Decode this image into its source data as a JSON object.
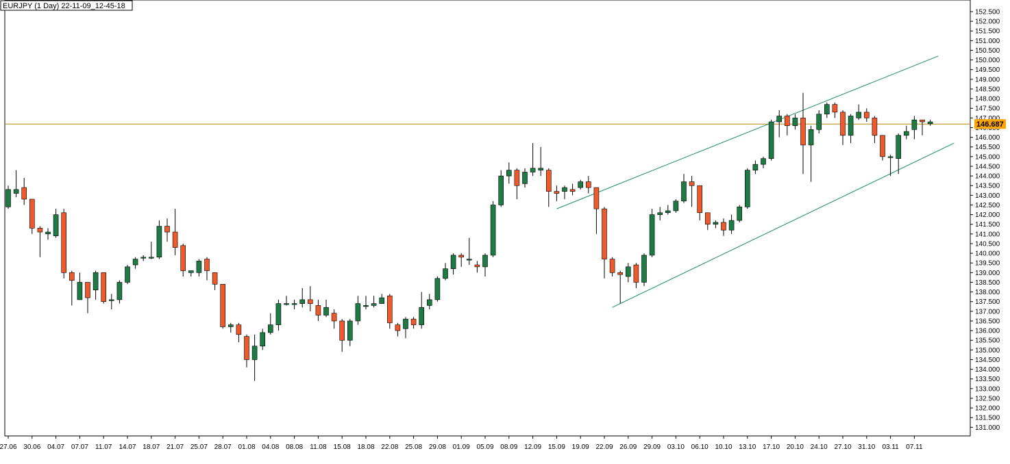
{
  "header": {
    "title": "EURJPY (1 Day) 22-11-09_12-45-18"
  },
  "colors": {
    "up": "#1e7b45",
    "down": "#ee5a2c",
    "wick": "#000000",
    "price_line": "#b8860b",
    "price_tag": "#ffa500",
    "channel": "#1a8a6a",
    "frame": "#000000"
  },
  "chart_data": {
    "type": "candlestick",
    "symbol": "EURJPY",
    "timeframe": "1 Day",
    "ylim": [
      130.8,
      152.5
    ],
    "y_ticks": [
      "131.000",
      "131.500",
      "132.000",
      "132.500",
      "133.000",
      "133.500",
      "134.000",
      "134.500",
      "135.000",
      "135.500",
      "136.000",
      "136.500",
      "137.000",
      "137.500",
      "138.000",
      "138.500",
      "139.000",
      "139.500",
      "140.000",
      "140.500",
      "141.000",
      "141.500",
      "142.000",
      "142.500",
      "143.000",
      "143.500",
      "144.000",
      "144.500",
      "145.000",
      "145.500",
      "146.000",
      "146.500",
      "147.000",
      "147.500",
      "148.000",
      "148.500",
      "149.000",
      "149.500",
      "150.000",
      "150.500",
      "151.000",
      "151.500",
      "152.000",
      "152.500"
    ],
    "x_labels": [
      {
        "label": "27.06",
        "index": 0
      },
      {
        "label": "30.06",
        "index": 3
      },
      {
        "label": "04.07",
        "index": 6
      },
      {
        "label": "07.07",
        "index": 9
      },
      {
        "label": "11.07",
        "index": 12
      },
      {
        "label": "14.07",
        "index": 15
      },
      {
        "label": "18.07",
        "index": 18
      },
      {
        "label": "21.07",
        "index": 21
      },
      {
        "label": "25.07",
        "index": 24
      },
      {
        "label": "28.07",
        "index": 27
      },
      {
        "label": "01.08",
        "index": 30
      },
      {
        "label": "04.08",
        "index": 33
      },
      {
        "label": "08.08",
        "index": 36
      },
      {
        "label": "11.08",
        "index": 39
      },
      {
        "label": "15.08",
        "index": 42
      },
      {
        "label": "18.08",
        "index": 45
      },
      {
        "label": "22.08",
        "index": 48
      },
      {
        "label": "25.08",
        "index": 51
      },
      {
        "label": "29.08",
        "index": 54
      },
      {
        "label": "01.09",
        "index": 57
      },
      {
        "label": "05.09",
        "index": 60
      },
      {
        "label": "08.09",
        "index": 63
      },
      {
        "label": "12.09",
        "index": 66
      },
      {
        "label": "15.09",
        "index": 69
      },
      {
        "label": "19.09",
        "index": 72
      },
      {
        "label": "22.09",
        "index": 75
      },
      {
        "label": "26.09",
        "index": 78
      },
      {
        "label": "29.09",
        "index": 81
      },
      {
        "label": "03.10",
        "index": 84
      },
      {
        "label": "06.10",
        "index": 87
      },
      {
        "label": "10.10",
        "index": 90
      },
      {
        "label": "13.10",
        "index": 93
      },
      {
        "label": "17.10",
        "index": 96
      },
      {
        "label": "20.10",
        "index": 99
      },
      {
        "label": "24.10",
        "index": 102
      },
      {
        "label": "27.10",
        "index": 105
      },
      {
        "label": "31.10",
        "index": 108
      },
      {
        "label": "03.11",
        "index": 111
      },
      {
        "label": "07.11",
        "index": 114
      }
    ],
    "current_price": 146.687,
    "current_price_label": "146.687",
    "channel_lines": [
      {
        "name": "upper",
        "start": {
          "index": 69,
          "price": 142.3
        },
        "end": {
          "index": 117,
          "price": 150.2
        }
      },
      {
        "name": "lower",
        "start": {
          "index": 76,
          "price": 137.2
        },
        "end": {
          "index": 119,
          "price": 145.7
        }
      }
    ],
    "candles": [
      [
        142.4,
        143.3,
        142.3,
        143.5
      ],
      [
        143.1,
        143.3,
        142.9,
        144.3
      ],
      [
        143.4,
        142.8,
        142.5,
        143.9
      ],
      [
        142.8,
        141.3,
        141.0,
        142.8
      ],
      [
        141.3,
        141.1,
        139.8,
        141.4
      ],
      [
        141.0,
        141.1,
        140.7,
        141.3
      ],
      [
        140.9,
        142.0,
        140.8,
        142.3
      ],
      [
        142.1,
        139.0,
        138.7,
        142.3
      ],
      [
        139.0,
        138.6,
        137.3,
        139.1
      ],
      [
        137.6,
        138.5,
        137.6,
        139.0
      ],
      [
        138.5,
        137.7,
        136.9,
        138.5
      ],
      [
        138.1,
        139.0,
        137.6,
        139.1
      ],
      [
        139.0,
        137.5,
        137.4,
        139.0
      ],
      [
        137.6,
        137.6,
        137.1,
        137.9
      ],
      [
        137.6,
        138.5,
        137.4,
        138.6
      ],
      [
        138.5,
        139.3,
        138.4,
        139.4
      ],
      [
        139.4,
        139.7,
        139.2,
        139.8
      ],
      [
        139.8,
        139.8,
        139.6,
        139.9
      ],
      [
        139.8,
        139.8,
        139.7,
        140.6
      ],
      [
        139.8,
        141.4,
        139.7,
        141.7
      ],
      [
        141.4,
        141.1,
        140.6,
        141.8
      ],
      [
        141.1,
        140.3,
        139.9,
        142.3
      ],
      [
        140.4,
        139.1,
        138.8,
        140.5
      ],
      [
        139.0,
        139.1,
        138.8,
        139.1
      ],
      [
        139.0,
        139.6,
        138.8,
        139.7
      ],
      [
        139.7,
        139.1,
        138.6,
        139.8
      ],
      [
        139.0,
        138.4,
        138.1,
        139.0
      ],
      [
        138.4,
        136.2,
        136.1,
        138.4
      ],
      [
        136.2,
        136.3,
        135.9,
        136.4
      ],
      [
        136.3,
        135.8,
        135.4,
        136.4
      ],
      [
        135.7,
        134.5,
        134.1,
        135.8
      ],
      [
        134.5,
        135.2,
        133.4,
        135.8
      ],
      [
        135.2,
        135.9,
        135.0,
        136.1
      ],
      [
        135.9,
        136.3,
        135.8,
        136.9
      ],
      [
        136.3,
        137.4,
        136.0,
        137.6
      ],
      [
        137.4,
        137.4,
        137.3,
        137.8
      ],
      [
        137.4,
        137.4,
        137.1,
        137.6
      ],
      [
        137.4,
        137.6,
        137.2,
        138.2
      ],
      [
        137.6,
        137.4,
        137.0,
        138.3
      ],
      [
        137.3,
        136.8,
        136.5,
        137.6
      ],
      [
        136.8,
        137.2,
        136.7,
        137.6
      ],
      [
        136.9,
        136.5,
        136.1,
        137.1
      ],
      [
        136.5,
        135.5,
        134.9,
        136.6
      ],
      [
        135.5,
        136.5,
        135.2,
        136.6
      ],
      [
        136.5,
        137.4,
        136.3,
        137.8
      ],
      [
        137.3,
        137.3,
        137.1,
        137.8
      ],
      [
        137.3,
        137.4,
        137.2,
        137.8
      ],
      [
        137.4,
        137.7,
        137.4,
        137.9
      ],
      [
        137.8,
        136.4,
        136.1,
        137.9
      ],
      [
        136.3,
        136.0,
        135.7,
        136.4
      ],
      [
        136.1,
        136.6,
        135.6,
        136.7
      ],
      [
        136.6,
        136.3,
        136.1,
        136.7
      ],
      [
        136.3,
        137.2,
        136.1,
        138.0
      ],
      [
        137.3,
        137.6,
        137.1,
        137.9
      ],
      [
        137.6,
        138.7,
        137.5,
        138.8
      ],
      [
        138.7,
        139.2,
        138.6,
        139.5
      ],
      [
        139.2,
        139.9,
        138.9,
        140.0
      ],
      [
        139.9,
        139.8,
        139.3,
        140.0
      ],
      [
        139.7,
        139.7,
        139.4,
        140.8
      ],
      [
        139.4,
        139.3,
        139.0,
        139.6
      ],
      [
        139.3,
        139.9,
        138.8,
        140.0
      ],
      [
        139.9,
        142.5,
        139.8,
        142.7
      ],
      [
        142.5,
        144.0,
        142.4,
        144.3
      ],
      [
        144.0,
        144.3,
        143.6,
        144.7
      ],
      [
        144.3,
        143.5,
        142.8,
        144.4
      ],
      [
        143.6,
        144.2,
        143.4,
        144.4
      ],
      [
        144.2,
        144.4,
        144.0,
        145.7
      ],
      [
        144.3,
        144.4,
        144.0,
        145.5
      ],
      [
        144.3,
        143.2,
        142.4,
        144.4
      ],
      [
        143.2,
        143.1,
        142.7,
        143.5
      ],
      [
        143.2,
        143.4,
        142.8,
        143.5
      ],
      [
        143.3,
        143.2,
        143.0,
        143.6
      ],
      [
        143.4,
        143.7,
        143.3,
        143.8
      ],
      [
        143.7,
        143.4,
        143.1,
        144.0
      ],
      [
        143.4,
        142.3,
        141.0,
        143.4
      ],
      [
        142.3,
        139.7,
        138.7,
        142.4
      ],
      [
        139.7,
        139.0,
        138.8,
        139.8
      ],
      [
        139.0,
        138.9,
        137.4,
        139.1
      ],
      [
        138.8,
        139.3,
        138.5,
        139.5
      ],
      [
        139.4,
        138.5,
        138.2,
        139.5
      ],
      [
        138.5,
        139.9,
        138.3,
        140.0
      ],
      [
        139.9,
        142.0,
        139.8,
        142.3
      ],
      [
        142.0,
        142.1,
        141.7,
        142.4
      ],
      [
        142.1,
        142.2,
        142.0,
        142.5
      ],
      [
        142.2,
        142.7,
        142.1,
        142.8
      ],
      [
        142.7,
        143.7,
        142.6,
        144.1
      ],
      [
        143.7,
        143.5,
        142.4,
        144.0
      ],
      [
        143.5,
        142.1,
        141.7,
        143.5
      ],
      [
        142.1,
        141.5,
        141.2,
        142.1
      ],
      [
        141.5,
        141.6,
        141.3,
        141.7
      ],
      [
        141.6,
        141.2,
        140.9,
        141.8
      ],
      [
        141.2,
        141.7,
        141.0,
        142.0
      ],
      [
        141.7,
        142.4,
        141.6,
        142.5
      ],
      [
        142.4,
        144.3,
        142.3,
        144.4
      ],
      [
        144.3,
        144.6,
        144.1,
        144.8
      ],
      [
        144.6,
        144.9,
        144.4,
        145.0
      ],
      [
        144.9,
        146.8,
        144.8,
        146.9
      ],
      [
        146.8,
        147.1,
        146.0,
        147.4
      ],
      [
        147.1,
        146.6,
        146.1,
        147.2
      ],
      [
        146.6,
        147.0,
        146.4,
        147.2
      ],
      [
        147.0,
        145.6,
        144.1,
        148.3
      ],
      [
        145.6,
        146.4,
        143.7,
        146.6
      ],
      [
        146.4,
        147.2,
        146.2,
        147.4
      ],
      [
        147.2,
        147.7,
        147.0,
        147.8
      ],
      [
        147.7,
        147.3,
        147.0,
        147.8
      ],
      [
        147.3,
        146.1,
        145.6,
        147.4
      ],
      [
        146.1,
        147.1,
        145.7,
        147.2
      ],
      [
        147.0,
        147.3,
        146.9,
        147.7
      ],
      [
        147.3,
        147.0,
        146.8,
        147.5
      ],
      [
        147.0,
        146.1,
        145.7,
        147.1
      ],
      [
        146.1,
        145.0,
        144.8,
        146.1
      ],
      [
        145.0,
        145.0,
        144.0,
        145.1
      ],
      [
        144.9,
        146.1,
        144.1,
        146.2
      ],
      [
        146.1,
        146.3,
        145.9,
        146.6
      ],
      [
        146.4,
        146.9,
        145.9,
        147.1
      ],
      [
        146.9,
        146.8,
        146.1,
        146.9
      ],
      [
        146.7,
        146.8,
        146.6,
        146.9
      ]
    ]
  }
}
